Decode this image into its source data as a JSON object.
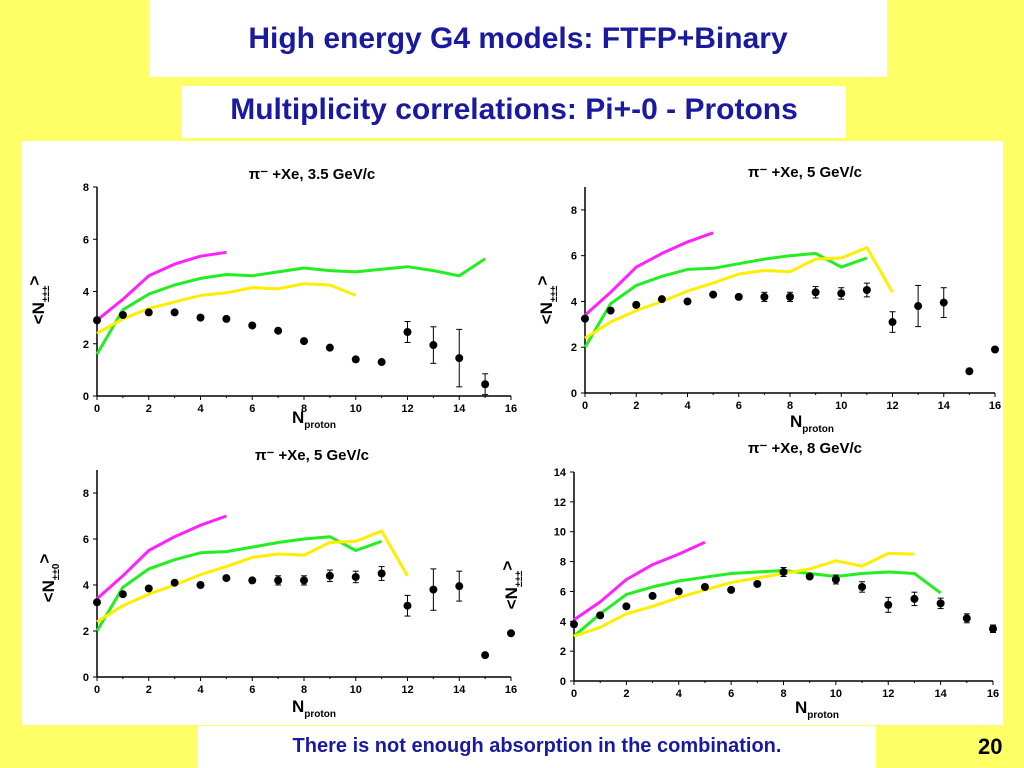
{
  "slide": {
    "title": "High energy G4 models: FTFP+Binary",
    "subtitle": "Multiplicity correlations: Pi+-0 - Protons",
    "note": "There is not enough absorption in the combination.",
    "page_number": "20"
  },
  "colors": {
    "background": "#ffff66",
    "text_blue": "#1a1aa0",
    "magenta": "#ff22ff",
    "green": "#22ee22",
    "yellow": "#ffee00",
    "data": "#000000"
  },
  "chart_data": [
    {
      "type": "line",
      "title": "π⁻ +Xe, 3.5 GeV/c",
      "xlabel_main": "N",
      "xlabel_sub": "proton",
      "ylabel_main": "<N",
      "ylabel_sub": "±±±",
      "ylabel_end": ">",
      "xlim": [
        0,
        16
      ],
      "ylim": [
        0,
        8
      ],
      "xticks": [
        "0",
        "2",
        "4",
        "6",
        "8",
        "10",
        "12",
        "14",
        "16"
      ],
      "yticks": [
        "0",
        "2",
        "4",
        "6",
        "8"
      ],
      "series": [
        {
          "color": "magenta",
          "x": [
            0,
            1,
            2,
            3,
            4,
            5
          ],
          "y": [
            2.9,
            3.7,
            4.6,
            5.05,
            5.35,
            5.5
          ]
        },
        {
          "color": "green",
          "x": [
            0,
            1,
            2,
            3,
            4,
            5,
            6,
            7,
            8,
            9,
            10,
            11,
            12,
            13,
            14,
            15
          ],
          "y": [
            1.6,
            3.3,
            3.9,
            4.25,
            4.5,
            4.65,
            4.6,
            4.75,
            4.9,
            4.8,
            4.75,
            4.85,
            4.95,
            4.8,
            4.6,
            5.25
          ]
        },
        {
          "color": "yellow",
          "x": [
            0,
            1,
            2,
            3,
            4,
            5,
            6,
            7,
            8,
            9,
            10
          ],
          "y": [
            2.4,
            2.95,
            3.35,
            3.6,
            3.85,
            3.95,
            4.15,
            4.1,
            4.3,
            4.25,
            3.85
          ]
        }
      ],
      "points": [
        {
          "x": 0,
          "y": 2.9
        },
        {
          "x": 1,
          "y": 3.1
        },
        {
          "x": 2,
          "y": 3.2
        },
        {
          "x": 3,
          "y": 3.2
        },
        {
          "x": 4,
          "y": 3.0
        },
        {
          "x": 5,
          "y": 2.95
        },
        {
          "x": 6,
          "y": 2.7
        },
        {
          "x": 7,
          "y": 2.5
        },
        {
          "x": 8,
          "y": 2.1
        },
        {
          "x": 9,
          "y": 1.85
        },
        {
          "x": 10,
          "y": 1.4
        },
        {
          "x": 11,
          "y": 1.3
        },
        {
          "x": 12,
          "y": 2.45,
          "err": 0.4
        },
        {
          "x": 13,
          "y": 1.95,
          "err": 0.7
        },
        {
          "x": 14,
          "y": 1.45,
          "err": 1.1
        },
        {
          "x": 15,
          "y": 0.45,
          "err": 0.4
        }
      ]
    },
    {
      "type": "line",
      "title": "π⁻ +Xe, 5 GeV/c",
      "xlabel_main": "N",
      "xlabel_sub": "proton",
      "ylabel_main": "<N",
      "ylabel_sub": "±±±",
      "ylabel_end": ">",
      "xlim": [
        0,
        16
      ],
      "ylim": [
        0,
        9
      ],
      "xticks": [
        "0",
        "2",
        "4",
        "6",
        "8",
        "10",
        "12",
        "14",
        "16"
      ],
      "yticks": [
        "0",
        "2",
        "4",
        "6",
        "8"
      ],
      "series": [
        {
          "color": "magenta",
          "x": [
            0,
            1,
            2,
            3,
            4,
            5
          ],
          "y": [
            3.4,
            4.4,
            5.5,
            6.1,
            6.6,
            7.0
          ]
        },
        {
          "color": "green",
          "x": [
            0,
            1,
            2,
            3,
            4,
            5,
            6,
            7,
            8,
            9,
            10,
            11
          ],
          "y": [
            2.0,
            3.9,
            4.7,
            5.1,
            5.4,
            5.45,
            5.65,
            5.85,
            6.0,
            6.1,
            5.5,
            5.9
          ]
        },
        {
          "color": "yellow",
          "x": [
            0,
            1,
            2,
            3,
            4,
            5,
            6,
            7,
            8,
            9,
            10,
            11,
            12
          ],
          "y": [
            2.4,
            3.1,
            3.6,
            4.0,
            4.45,
            4.8,
            5.2,
            5.35,
            5.3,
            5.85,
            5.9,
            6.35,
            4.4
          ]
        }
      ],
      "points": [
        {
          "x": 0,
          "y": 3.25
        },
        {
          "x": 1,
          "y": 3.6
        },
        {
          "x": 2,
          "y": 3.85
        },
        {
          "x": 3,
          "y": 4.1
        },
        {
          "x": 4,
          "y": 4.0
        },
        {
          "x": 5,
          "y": 4.3
        },
        {
          "x": 6,
          "y": 4.2
        },
        {
          "x": 7,
          "y": 4.2,
          "err": 0.2
        },
        {
          "x": 8,
          "y": 4.2,
          "err": 0.2
        },
        {
          "x": 9,
          "y": 4.4,
          "err": 0.25
        },
        {
          "x": 10,
          "y": 4.35,
          "err": 0.25
        },
        {
          "x": 11,
          "y": 4.5,
          "err": 0.3
        },
        {
          "x": 12,
          "y": 3.1,
          "err": 0.45
        },
        {
          "x": 13,
          "y": 3.8,
          "err": 0.9
        },
        {
          "x": 14,
          "y": 3.95,
          "err": 0.65
        },
        {
          "x": 15,
          "y": 0.95
        },
        {
          "x": 16,
          "y": 1.9
        }
      ]
    },
    {
      "type": "line",
      "title": "π⁻ +Xe, 5 GeV/c",
      "xlabel_main": "N",
      "xlabel_sub": "proton",
      "ylabel_main": "<N",
      "ylabel_sub": "±±0",
      "ylabel_end": ">",
      "xlim": [
        0,
        16
      ],
      "ylim": [
        0,
        9
      ],
      "xticks": [
        "0",
        "2",
        "4",
        "6",
        "8",
        "10",
        "12",
        "14",
        "16"
      ],
      "yticks": [
        "0",
        "2",
        "4",
        "6",
        "8"
      ],
      "series": [
        {
          "color": "magenta",
          "x": [
            0,
            1,
            2,
            3,
            4,
            5
          ],
          "y": [
            3.4,
            4.4,
            5.5,
            6.1,
            6.6,
            7.0
          ]
        },
        {
          "color": "green",
          "x": [
            0,
            1,
            2,
            3,
            4,
            5,
            6,
            7,
            8,
            9,
            10,
            11
          ],
          "y": [
            2.0,
            3.9,
            4.7,
            5.1,
            5.4,
            5.45,
            5.65,
            5.85,
            6.0,
            6.1,
            5.5,
            5.9
          ]
        },
        {
          "color": "yellow",
          "x": [
            0,
            1,
            2,
            3,
            4,
            5,
            6,
            7,
            8,
            9,
            10,
            11,
            12
          ],
          "y": [
            2.4,
            3.1,
            3.6,
            4.0,
            4.45,
            4.8,
            5.2,
            5.35,
            5.3,
            5.85,
            5.9,
            6.35,
            4.4
          ]
        }
      ],
      "points": [
        {
          "x": 0,
          "y": 3.25
        },
        {
          "x": 1,
          "y": 3.6
        },
        {
          "x": 2,
          "y": 3.85
        },
        {
          "x": 3,
          "y": 4.1
        },
        {
          "x": 4,
          "y": 4.0
        },
        {
          "x": 5,
          "y": 4.3
        },
        {
          "x": 6,
          "y": 4.2
        },
        {
          "x": 7,
          "y": 4.2,
          "err": 0.2
        },
        {
          "x": 8,
          "y": 4.2,
          "err": 0.2
        },
        {
          "x": 9,
          "y": 4.4,
          "err": 0.25
        },
        {
          "x": 10,
          "y": 4.35,
          "err": 0.25
        },
        {
          "x": 11,
          "y": 4.5,
          "err": 0.3
        },
        {
          "x": 12,
          "y": 3.1,
          "err": 0.45
        },
        {
          "x": 13,
          "y": 3.8,
          "err": 0.9
        },
        {
          "x": 14,
          "y": 3.95,
          "err": 0.65
        },
        {
          "x": 15,
          "y": 0.95
        },
        {
          "x": 16,
          "y": 1.9
        }
      ]
    },
    {
      "type": "line",
      "title": "π⁻ +Xe, 8 GeV/c",
      "xlabel_main": "N",
      "xlabel_sub": "proton",
      "ylabel_main": "<N",
      "ylabel_sub": "±±±",
      "ylabel_end": ">",
      "xlim": [
        0,
        16
      ],
      "ylim": [
        0,
        14
      ],
      "xticks": [
        "0",
        "2",
        "4",
        "6",
        "8",
        "10",
        "12",
        "14",
        "16"
      ],
      "yticks": [
        "0",
        "2",
        "4",
        "6",
        "8",
        "10",
        "12",
        "14"
      ],
      "series": [
        {
          "color": "magenta",
          "x": [
            0,
            1,
            2,
            3,
            4,
            5
          ],
          "y": [
            4.1,
            5.3,
            6.8,
            7.8,
            8.5,
            9.3
          ]
        },
        {
          "color": "green",
          "x": [
            0,
            1,
            2,
            3,
            4,
            5,
            6,
            7,
            8,
            9,
            10,
            11,
            12,
            13,
            14
          ],
          "y": [
            3.0,
            4.5,
            5.8,
            6.3,
            6.7,
            6.95,
            7.2,
            7.3,
            7.4,
            7.2,
            7.0,
            7.2,
            7.3,
            7.2,
            5.9
          ]
        },
        {
          "color": "yellow",
          "x": [
            0,
            1,
            2,
            3,
            4,
            5,
            6,
            7,
            8,
            9,
            10,
            11,
            12,
            13
          ],
          "y": [
            3.0,
            3.6,
            4.5,
            5.0,
            5.6,
            6.1,
            6.6,
            6.9,
            7.2,
            7.5,
            8.05,
            7.7,
            8.55,
            8.5
          ]
        }
      ],
      "points": [
        {
          "x": 0,
          "y": 3.8
        },
        {
          "x": 1,
          "y": 4.4
        },
        {
          "x": 2,
          "y": 5.0
        },
        {
          "x": 3,
          "y": 5.7
        },
        {
          "x": 4,
          "y": 6.0
        },
        {
          "x": 5,
          "y": 6.3
        },
        {
          "x": 6,
          "y": 6.1
        },
        {
          "x": 7,
          "y": 6.5
        },
        {
          "x": 8,
          "y": 7.3,
          "err": 0.3
        },
        {
          "x": 9,
          "y": 7.0
        },
        {
          "x": 10,
          "y": 6.8,
          "err": 0.3
        },
        {
          "x": 11,
          "y": 6.3,
          "err": 0.35
        },
        {
          "x": 12,
          "y": 5.1,
          "err": 0.5
        },
        {
          "x": 13,
          "y": 5.5,
          "err": 0.45
        },
        {
          "x": 14,
          "y": 5.2,
          "err": 0.35
        },
        {
          "x": 15,
          "y": 4.2,
          "err": 0.3
        },
        {
          "x": 16,
          "y": 3.5,
          "err": 0.25
        }
      ]
    }
  ]
}
